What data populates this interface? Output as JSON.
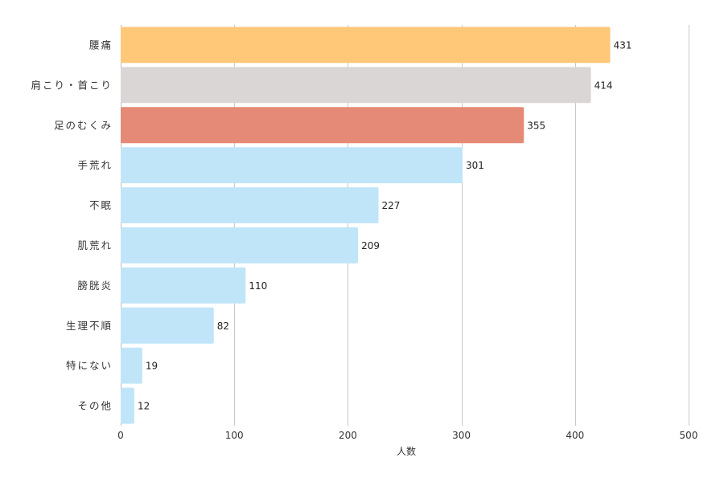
{
  "chart_data": {
    "type": "bar",
    "orientation": "horizontal",
    "categories": [
      "腰痛",
      "肩こり・首こり",
      "足のむくみ",
      "手荒れ",
      "不眠",
      "肌荒れ",
      "膀胱炎",
      "生理不順",
      "特にない",
      "その他"
    ],
    "values": [
      431,
      414,
      355,
      301,
      227,
      209,
      110,
      82,
      19,
      12
    ],
    "colors": [
      "#FFC878",
      "#DAD6D5",
      "#E58A76",
      "#C0E5F8",
      "#C0E5F8",
      "#C0E5F8",
      "#C0E5F8",
      "#C0E5F8",
      "#C0E5F8",
      "#C0E5F8"
    ],
    "xlabel": "人数",
    "ylabel": "",
    "xlim": [
      0,
      500
    ],
    "xticks": [
      0,
      100,
      200,
      300,
      400,
      500
    ],
    "grid": "vertical",
    "legend": "none"
  }
}
